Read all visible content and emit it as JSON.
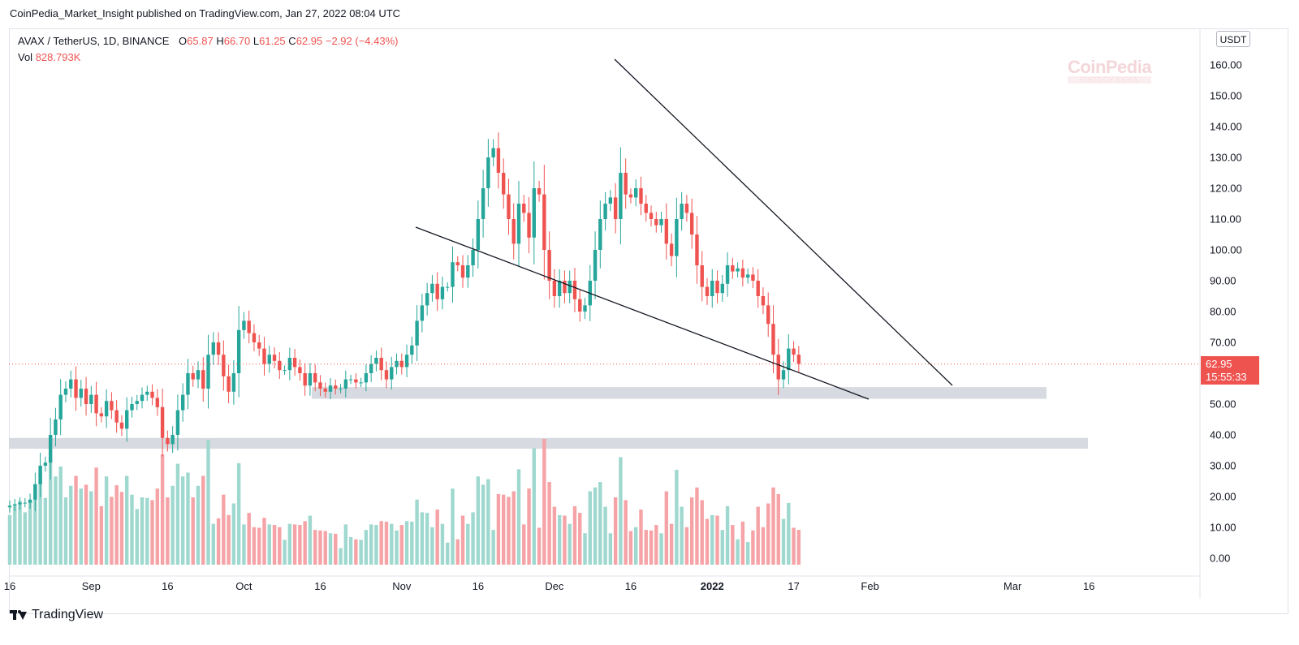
{
  "publication": "CoinPedia_Market_Insight published on TradingView.com, Jan 27, 2022 08:04 UTC",
  "legend": {
    "symbol": "AVAX / TetherUS, 1D, BINANCE",
    "o_label": "O",
    "o": "65.87",
    "h_label": "H",
    "h": "66.70",
    "l_label": "L",
    "l": "61.25",
    "c_label": "C",
    "c": "62.95",
    "change": "−2.92 (−4.43%)",
    "vol_label": "Vol",
    "vol": "828.793K"
  },
  "currency_button": "USDT",
  "last_price": "62.95",
  "countdown": "15:55:33",
  "watermark": {
    "main": "CoinPedia",
    "sub": "FINTECH NEWS"
  },
  "footer_brand": "TradingView",
  "colors": {
    "up": "#26a69a",
    "down": "#ef5350",
    "up_vol": "#9fd8cf",
    "down_vol": "#f5a3a6",
    "zone": "#d1d4dc",
    "axis_text": "#131722"
  },
  "chart_data": {
    "type": "candlestick",
    "title": "AVAX / TetherUS, 1D, BINANCE",
    "ylim": [
      -5,
      171
    ],
    "y_ticks": [
      "0.00",
      "10.00",
      "20.00",
      "30.00",
      "40.00",
      "50.00",
      "60.00",
      "70.00",
      "80.00",
      "90.00",
      "100.00",
      "110.00",
      "120.00",
      "130.00",
      "140.00",
      "150.00",
      "160.00"
    ],
    "y_tick_values": [
      0,
      10,
      20,
      30,
      40,
      50,
      60,
      70,
      80,
      90,
      100,
      110,
      120,
      130,
      140,
      150,
      160
    ],
    "x_ticks": [
      {
        "label": "16",
        "day": 0
      },
      {
        "label": "Sep",
        "day": 16
      },
      {
        "label": "16",
        "day": 31
      },
      {
        "label": "Oct",
        "day": 46
      },
      {
        "label": "16",
        "day": 61
      },
      {
        "label": "Nov",
        "day": 77
      },
      {
        "label": "16",
        "day": 92
      },
      {
        "label": "Dec",
        "day": 107
      },
      {
        "label": "16",
        "day": 122
      },
      {
        "label": "2022",
        "day": 138,
        "bold": true
      },
      {
        "label": "17",
        "day": 154
      },
      {
        "label": "Feb",
        "day": 169
      },
      {
        "label": "Mar",
        "day": 197
      },
      {
        "label": "16",
        "day": 212
      }
    ],
    "start_date": "2021-08-16",
    "closes": [
      17,
      17.5,
      18,
      18,
      19,
      24,
      30,
      31,
      40,
      45,
      53,
      55,
      58,
      52,
      55,
      50,
      53,
      47,
      46,
      51,
      48,
      44,
      42,
      48,
      50,
      51,
      53,
      54,
      52,
      49,
      39,
      37,
      40,
      48,
      53,
      60,
      58,
      61,
      55,
      66,
      70,
      66,
      59,
      54,
      60,
      74,
      77,
      73,
      70,
      68,
      63,
      66,
      64,
      61,
      61,
      65,
      62,
      60,
      56,
      60,
      57,
      55,
      54,
      56,
      55,
      55,
      58,
      58,
      57,
      57,
      60,
      63,
      65,
      61,
      58,
      62,
      64,
      62,
      66,
      69,
      77,
      82,
      86,
      89,
      84,
      88,
      88,
      96,
      95,
      91,
      95,
      100,
      110,
      120,
      130,
      133,
      125,
      118,
      110,
      102,
      115,
      112,
      104,
      120,
      118,
      100,
      90,
      85,
      90,
      86,
      90,
      84,
      80,
      82,
      90,
      100,
      110,
      115,
      117,
      110,
      125,
      118,
      117,
      120,
      115,
      112,
      110,
      108,
      110,
      102,
      98,
      110,
      115,
      112,
      105,
      95,
      88,
      85,
      90,
      86,
      89,
      95,
      93,
      94,
      91,
      92,
      90,
      85,
      82,
      76,
      66,
      58,
      61,
      68,
      66,
      63
    ]
  }
}
